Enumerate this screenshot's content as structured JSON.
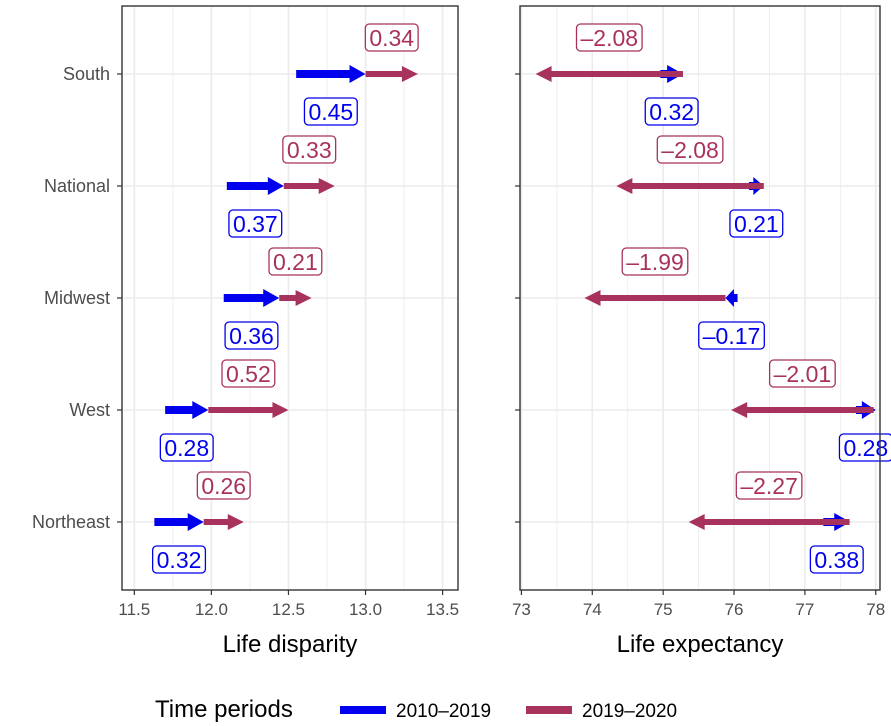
{
  "colors": {
    "period_2010_2019": "#0000ee",
    "period_2019_2020": "#a8325e",
    "grid": "#ebebeb",
    "panel_border": "#333333"
  },
  "legend": {
    "title": "Time periods",
    "items": [
      {
        "label": "2010–2019",
        "color": "#0000ee"
      },
      {
        "label": "2019–2020",
        "color": "#a8325e"
      }
    ]
  },
  "chart_data": [
    {
      "type": "arrow-range",
      "xlabel": "Life disparity",
      "xlim": [
        11.42,
        13.6
      ],
      "xticks": [
        "11.5",
        "12.0",
        "12.5",
        "13.0",
        "13.5"
      ],
      "categories": [
        "South",
        "National",
        "Midwest",
        "West",
        "Northeast"
      ],
      "series": [
        {
          "name": "2010–2019",
          "values": [
            {
              "region": "South",
              "from": 12.55,
              "to": 13.0,
              "label": "0.45"
            },
            {
              "region": "National",
              "from": 12.1,
              "to": 12.47,
              "label": "0.37"
            },
            {
              "region": "Midwest",
              "from": 12.08,
              "to": 12.44,
              "label": "0.36"
            },
            {
              "region": "West",
              "from": 11.7,
              "to": 11.98,
              "label": "0.28"
            },
            {
              "region": "Northeast",
              "from": 11.63,
              "to": 11.95,
              "label": "0.32"
            }
          ]
        },
        {
          "name": "2019–2020",
          "values": [
            {
              "region": "South",
              "from": 13.0,
              "to": 13.34,
              "label": "0.34"
            },
            {
              "region": "National",
              "from": 12.47,
              "to": 12.8,
              "label": "0.33"
            },
            {
              "region": "Midwest",
              "from": 12.44,
              "to": 12.65,
              "label": "0.21"
            },
            {
              "region": "West",
              "from": 11.98,
              "to": 12.5,
              "label": "0.52"
            },
            {
              "region": "Northeast",
              "from": 11.95,
              "to": 12.21,
              "label": "0.26"
            }
          ]
        }
      ]
    },
    {
      "type": "arrow-range",
      "xlabel": "Life expectancy",
      "xlim": [
        72.98,
        78.06
      ],
      "xticks": [
        "73",
        "74",
        "75",
        "76",
        "77",
        "78"
      ],
      "categories": [
        "South",
        "National",
        "Midwest",
        "West",
        "Northeast"
      ],
      "series": [
        {
          "name": "2010–2019",
          "values": [
            {
              "region": "South",
              "from": 74.96,
              "to": 75.28,
              "label": "0.32"
            },
            {
              "region": "National",
              "from": 76.21,
              "to": 76.42,
              "label": "0.21"
            },
            {
              "region": "Midwest",
              "from": 76.05,
              "to": 75.88,
              "label": "–0.17"
            },
            {
              "region": "West",
              "from": 77.72,
              "to": 78.0,
              "label": "0.28"
            },
            {
              "region": "Northeast",
              "from": 77.26,
              "to": 77.64,
              "label": "0.38"
            }
          ]
        },
        {
          "name": "2019–2020",
          "values": [
            {
              "region": "South",
              "from": 75.28,
              "to": 73.2,
              "label": "–2.08"
            },
            {
              "region": "National",
              "from": 76.42,
              "to": 74.34,
              "label": "–2.08"
            },
            {
              "region": "Midwest",
              "from": 75.88,
              "to": 73.89,
              "label": "–1.99"
            },
            {
              "region": "West",
              "from": 77.97,
              "to": 75.96,
              "label": "–2.01"
            },
            {
              "region": "Northeast",
              "from": 77.63,
              "to": 75.36,
              "label": "–2.27"
            }
          ]
        }
      ]
    }
  ]
}
